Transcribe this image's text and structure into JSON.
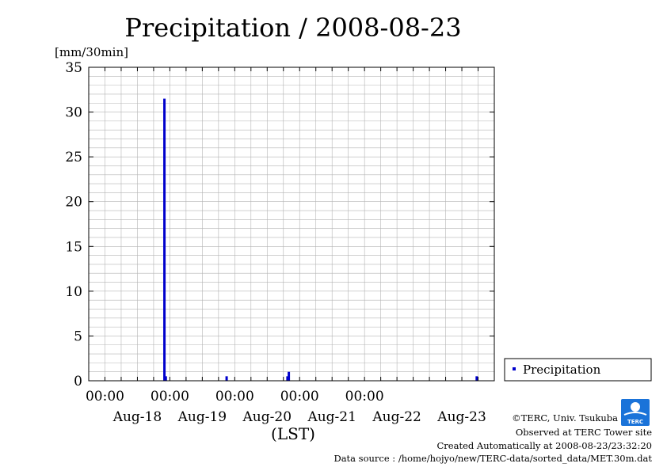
{
  "chart_data": {
    "type": "bar",
    "title": "Precipitation / 2008-08-23",
    "ylabel": "[mm/30min]",
    "xlabel": "(LST)",
    "ylim": [
      0,
      35
    ],
    "yticks": [
      0,
      5,
      10,
      15,
      20,
      25,
      30,
      35
    ],
    "xlim": [
      "2008-08-17 18:00",
      "2008-08-23 24:00"
    ],
    "x_time_ticks": [
      {
        "t": "2008-08-18 00:00",
        "label": "00:00"
      },
      {
        "t": "2008-08-19 00:00",
        "label": "00:00"
      },
      {
        "t": "2008-08-20 00:00",
        "label": "00:00"
      },
      {
        "t": "2008-08-21 00:00",
        "label": "00:00"
      },
      {
        "t": "2008-08-22 00:00",
        "label": "00:00"
      }
    ],
    "x_date_labels": [
      {
        "t": "2008-08-18 12:00",
        "label": "Aug-18"
      },
      {
        "t": "2008-08-19 12:00",
        "label": "Aug-19"
      },
      {
        "t": "2008-08-20 12:00",
        "label": "Aug-20"
      },
      {
        "t": "2008-08-21 12:00",
        "label": "Aug-21"
      },
      {
        "t": "2008-08-22 12:00",
        "label": "Aug-22"
      },
      {
        "t": "2008-08-23 12:00",
        "label": "Aug-23"
      }
    ],
    "grid": true,
    "legend": "right",
    "series": [
      {
        "name": "Precipitation",
        "color": "#0000cc",
        "points": [
          {
            "t": "2008-08-18 22:00",
            "v": 31.5
          },
          {
            "t": "2008-08-18 22:30",
            "v": 0.5
          },
          {
            "t": "2008-08-19 21:00",
            "v": 0.5
          },
          {
            "t": "2008-08-20 19:30",
            "v": 0.5
          },
          {
            "t": "2008-08-20 20:00",
            "v": 1.0
          },
          {
            "t": "2008-08-23 17:30",
            "v": 0.5
          }
        ]
      }
    ]
  },
  "footer": {
    "copyright": "©TERC, Univ. Tsukuba",
    "site": "Observed at TERC Tower site",
    "created": "Created Automatically at 2008-08-23/23:32:20",
    "source": "Data source : /home/hojyo/new/TERC-data/sorted_data/MET.30m.dat"
  },
  "logo": {
    "text": "TERC",
    "color": "#1a73d9"
  }
}
